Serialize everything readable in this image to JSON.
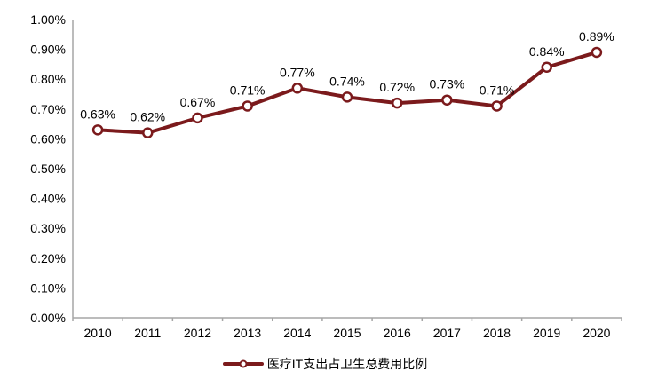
{
  "chart_data": {
    "type": "line",
    "title": "",
    "xlabel": "",
    "ylabel": "",
    "categories": [
      "2010",
      "2011",
      "2012",
      "2013",
      "2014",
      "2015",
      "2016",
      "2017",
      "2018",
      "2019",
      "2020"
    ],
    "series": [
      {
        "name": "医疗IT支出占卫生总费用比例",
        "values": [
          0.63,
          0.62,
          0.67,
          0.71,
          0.77,
          0.74,
          0.72,
          0.73,
          0.71,
          0.84,
          0.89
        ],
        "data_labels": [
          "0.63%",
          "0.62%",
          "0.67%",
          "0.71%",
          "0.77%",
          "0.74%",
          "0.72%",
          "0.73%",
          "0.71%",
          "0.84%",
          "0.89%"
        ]
      }
    ],
    "ylim": [
      0,
      1.0
    ],
    "y_tick_step": 0.1,
    "y_tick_labels": [
      "0.00%",
      "0.10%",
      "0.20%",
      "0.30%",
      "0.40%",
      "0.50%",
      "0.60%",
      "0.70%",
      "0.80%",
      "0.90%",
      "1.00%"
    ],
    "grid": false,
    "legend_position": "bottom-center",
    "colors": {
      "line": "#7b1a1c",
      "marker_fill": "#ffffff",
      "marker_stroke": "#7b1a1c",
      "axis": "#a6a6a6",
      "text": "#000000",
      "background": "#ffffff"
    }
  }
}
